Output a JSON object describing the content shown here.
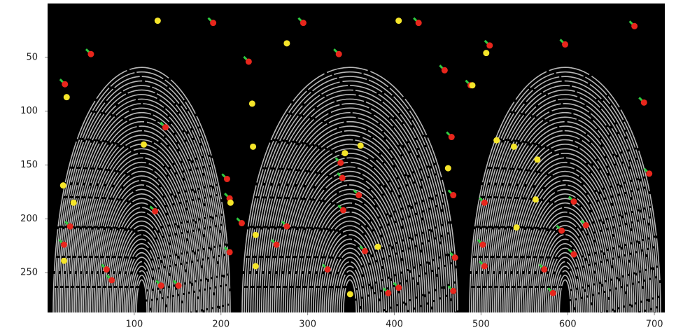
{
  "chart_data": {
    "type": "scatter",
    "xlim": [
      0,
      712
    ],
    "ylim": [
      0,
      287
    ],
    "y_inverted": true,
    "xticks": [
      100,
      200,
      300,
      400,
      500,
      600,
      700
    ],
    "yticks": [
      50,
      100,
      150,
      200,
      250
    ],
    "background": "#000000",
    "ridge_color": "#d8d8d8",
    "series": [
      {
        "color": "#e8261c",
        "x": [
          50,
          20,
          136,
          124,
          26,
          19,
          68,
          74,
          131,
          151,
          191,
          232,
          207,
          210,
          224,
          210,
          336,
          338,
          340,
          359,
          341,
          276,
          264,
          366,
          393,
          405,
          323,
          295,
          428,
          458,
          466,
          468,
          470,
          468,
          510,
          597,
          677,
          688,
          694,
          607,
          621,
          593,
          607,
          573,
          583,
          504,
          502,
          504,
          488
        ],
        "values": [
          47,
          75,
          115,
          193,
          207,
          224,
          247,
          257,
          262,
          262,
          18,
          54,
          163,
          181,
          204,
          231,
          47,
          148,
          162,
          178,
          192,
          207,
          224,
          230,
          269,
          264,
          247,
          18,
          18,
          62,
          124,
          178,
          236,
          267,
          39,
          38,
          21,
          92,
          158,
          184,
          206,
          211,
          233,
          247,
          269,
          185,
          224,
          244,
          76
        ]
      },
      {
        "color": "#f5e52a",
        "x": [
          127,
          276,
          22,
          111,
          18,
          30,
          19,
          236,
          237,
          240,
          240,
          211,
          361,
          343,
          381,
          349,
          405,
          506,
          490,
          518,
          538,
          565,
          563,
          541,
          462
        ],
        "values": [
          16,
          37,
          87,
          131,
          169,
          185,
          239,
          93,
          133,
          215,
          244,
          185,
          132,
          139,
          226,
          270,
          16,
          46,
          76,
          127,
          133,
          145,
          182,
          208,
          153
        ]
      }
    ]
  }
}
